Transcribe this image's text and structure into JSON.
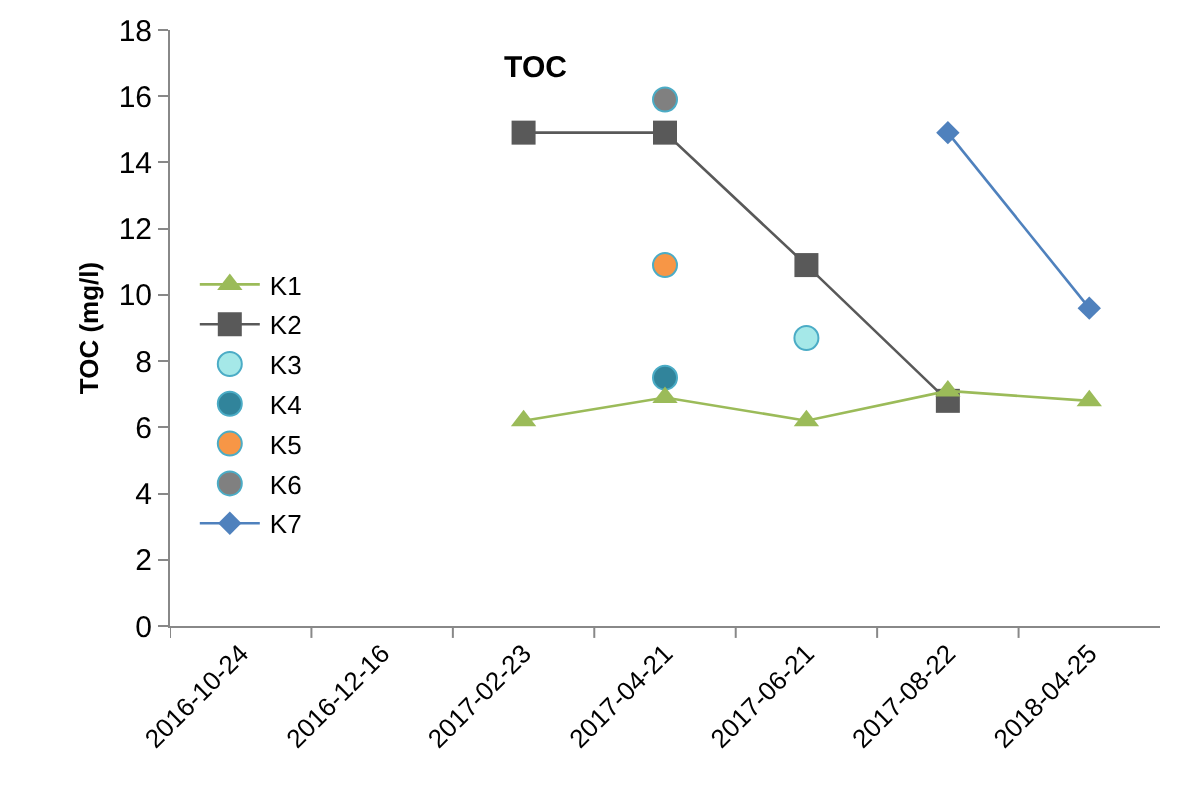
{
  "chart_data": {
    "type": "line",
    "title": "TOC",
    "ylabel": "TOC (mg/l)",
    "categories": [
      "2016-10-24",
      "2016-12-16",
      "2017-02-23",
      "2017-04-21",
      "2017-06-21",
      "2017-08-22",
      "2018-04-25"
    ],
    "series": [
      {
        "name": "K1",
        "color": "#9bbb59",
        "marker": "triangle",
        "values": [
          null,
          null,
          6.2,
          6.9,
          6.2,
          7.1,
          6.8
        ]
      },
      {
        "name": "K2",
        "color": "#595959",
        "marker": "square",
        "values": [
          null,
          null,
          14.9,
          14.9,
          10.9,
          6.8,
          null
        ]
      },
      {
        "name": "K3",
        "type": "scatter",
        "color": "#a5e8e8",
        "marker": "circle",
        "values": [
          null,
          null,
          null,
          null,
          8.7,
          null,
          null
        ]
      },
      {
        "name": "K4",
        "type": "scatter",
        "color": "#31849b",
        "marker": "circle",
        "values": [
          null,
          null,
          null,
          7.5,
          null,
          null,
          null
        ]
      },
      {
        "name": "K5",
        "type": "scatter",
        "color": "#f79646",
        "marker": "circle",
        "values": [
          null,
          null,
          null,
          10.9,
          null,
          null,
          null
        ]
      },
      {
        "name": "K6",
        "type": "scatter",
        "color": "#808080",
        "marker": "circle",
        "values": [
          null,
          null,
          null,
          15.9,
          null,
          null,
          null
        ]
      },
      {
        "name": "K7",
        "color": "#4f81bd",
        "marker": "diamond",
        "values": [
          null,
          null,
          null,
          null,
          null,
          14.9,
          9.6
        ]
      }
    ],
    "ylim": [
      0,
      18
    ],
    "yticks": [
      0,
      2,
      4,
      6,
      8,
      10,
      12,
      14,
      16,
      18
    ],
    "grid": false,
    "legend": "left",
    "line_style": "solid"
  }
}
